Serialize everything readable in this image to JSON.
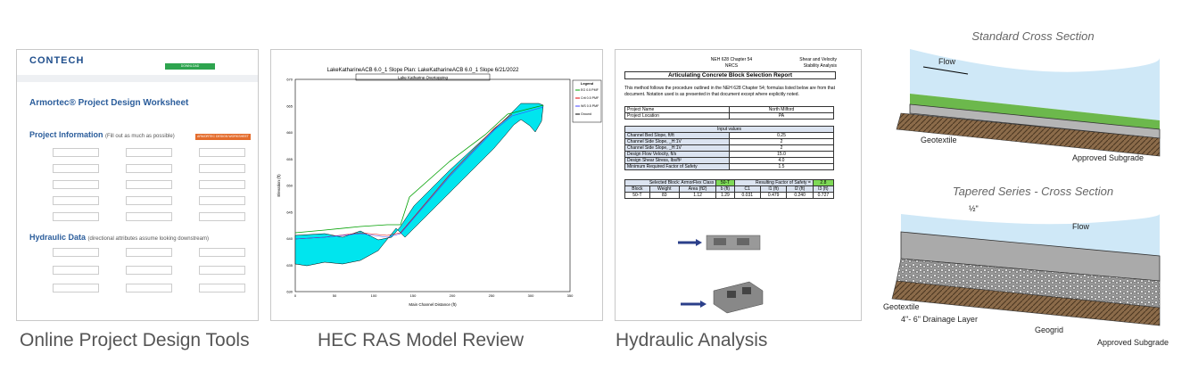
{
  "form": {
    "logo": "CONTECH",
    "button": "ARMORTEC DESIGN WORKSHEET",
    "title": "Armortec® Project Design Worksheet",
    "section1": "Project Information",
    "section1_note": "(Fill out as much as possible)",
    "section2": "Hydraulic Data",
    "section2_note": "(directional attributes assume looking downstream)",
    "caption": "Online Project Design Tools"
  },
  "hecras": {
    "header": "LakeKatharineACB 6.0_1 Slope     Plan: LakeKatharineACB 6.0_1 Slope     6/21/2022",
    "subtitle": "Lake Katharine Overtopping",
    "y_label": "Elevation (ft)",
    "x_label": "Main Channel Distance (ft)",
    "yticks": [
      "670",
      "665",
      "660",
      "655",
      "650",
      "645",
      "640",
      "635",
      "630"
    ],
    "xticks": [
      "0",
      "50",
      "100",
      "150",
      "200",
      "250",
      "300",
      "350"
    ],
    "legend_title": "Legend",
    "legend": [
      "EG 0.5 PMF",
      "Crit 0.5 PMF",
      "WS 0.5 PMF",
      "Ground"
    ],
    "caption": "HEC RAS Model Review"
  },
  "report": {
    "header": [
      "NEH 628 Chapter 54",
      "Shear and Velocity",
      "NRCS",
      "Stability Analysis"
    ],
    "title": "Articulating Concrete Block Selection Report",
    "intro": "This method follows the procedure outlined in the NEH 628 Chapter 54; formulas listed below are from that document. Notation used is as presented in that document except where explicitly noted.",
    "project": [
      [
        "Project Name",
        "North Milford"
      ],
      [
        "Project Location",
        "PA"
      ]
    ],
    "inputs_title": "Input values",
    "inputs": [
      [
        "Channel Bed Slope, ft/ft",
        "0.25"
      ],
      [
        "Channel Side Slope, _H:1V",
        "2"
      ],
      [
        "Channel Side Slope, _H:1V",
        "2"
      ],
      [
        "Design Flow Velocity, ft/s",
        "15.0"
      ],
      [
        "Design Shear Stress, lbs/ft²",
        "4.0"
      ],
      [
        "Minimum Required Factor of Safety",
        "1.5"
      ]
    ],
    "selected": [
      "Selected Block: ArmorFlex Class",
      "50-T",
      "Resulting Factor of Safety =",
      "2.8"
    ],
    "columns": [
      "Block",
      "Weight",
      "Area (ft2)",
      "b (ft)",
      "C1",
      "l1 (ft)",
      "l2 (ft)",
      "l3 (ft)"
    ],
    "row": [
      "50-T",
      "83",
      "1.12",
      "1.29",
      "0.031",
      "0.479",
      "0.240",
      "0.727"
    ],
    "caption": "Hydraulic Analysis"
  },
  "diagrams": {
    "standard_title": "Standard Cross Section",
    "tapered_title": "Tapered Series - Cross Section",
    "flow": "Flow",
    "geotextile": "Geotextile",
    "subgrade": "Approved Subgrade",
    "half_inch": "½\"",
    "drainage": "4\"- 6\" Drainage Layer",
    "geogrid": "Geogrid"
  }
}
